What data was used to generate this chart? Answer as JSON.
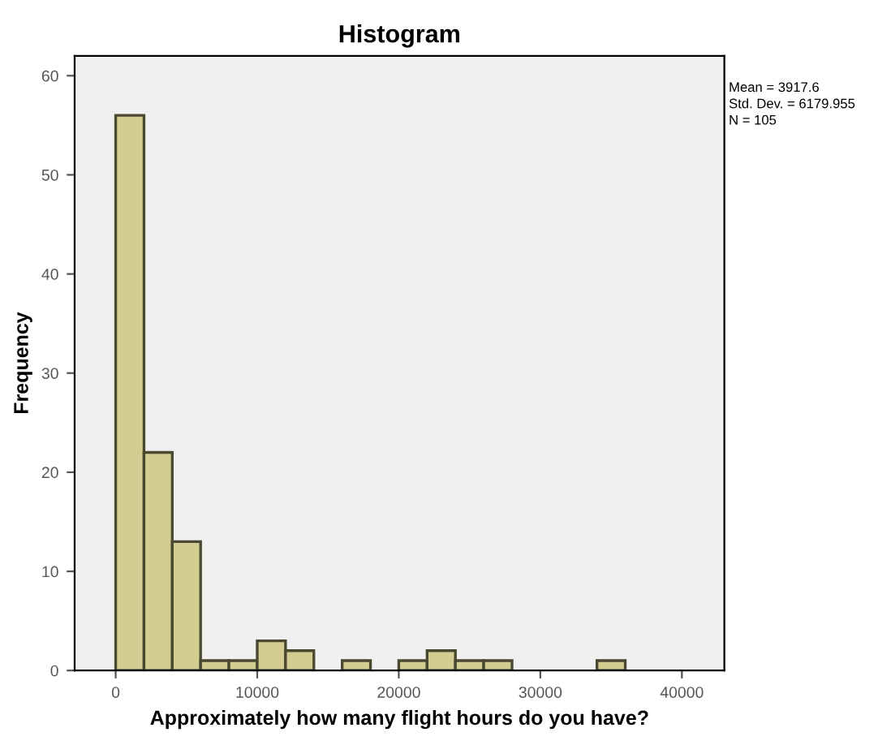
{
  "chart_data": {
    "type": "histogram",
    "title": "Histogram",
    "xlabel": "Approximately how many flight hours do you have?",
    "ylabel": "Frequency",
    "bins": [
      0,
      2000,
      4000,
      6000,
      8000,
      10000,
      12000,
      14000,
      16000,
      18000,
      20000,
      22000,
      24000,
      26000,
      28000,
      30000,
      32000,
      34000,
      36000
    ],
    "values": [
      56,
      22,
      13,
      1,
      1,
      3,
      2,
      0,
      1,
      0,
      1,
      2,
      1,
      1,
      0,
      0,
      0,
      1
    ],
    "color": "#d3cd92",
    "xlim": [
      -2900,
      43000
    ],
    "ylim": [
      0,
      62
    ],
    "xticks": [
      0,
      10000,
      20000,
      30000,
      40000
    ],
    "yticks": [
      0,
      10,
      20,
      30,
      40,
      50,
      60
    ],
    "grid": false,
    "annotations": [
      "Mean = 3917.6",
      "Std. Dev. = 6179.955",
      "N = 105"
    ]
  }
}
